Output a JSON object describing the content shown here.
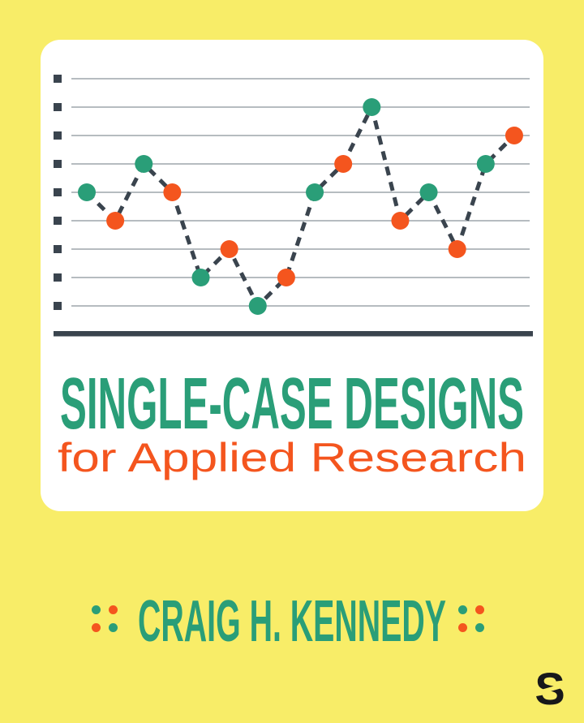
{
  "cover": {
    "title": "SINGLE-CASE DESIGNS",
    "subtitle": "for Applied Research",
    "author": "CRAIG H. KENNEDY",
    "publisher_logo_letter": "S"
  },
  "colors": {
    "background": "#F8ED68",
    "card": "#FFFFFF",
    "teal": "#2A9E78",
    "orange": "#F4551E",
    "slate": "#3A444E",
    "gridline": "#9DA6AB",
    "logo": "#17181A"
  },
  "author_decoration": {
    "pattern": [
      "teal",
      "orange",
      "orange",
      "teal"
    ]
  },
  "chart_data": {
    "type": "line",
    "line_style": "dashed",
    "marker": "circle",
    "title": "",
    "xlabel": "",
    "ylabel": "",
    "legend": "none",
    "axis": "thick bottom axis only, no labels",
    "gridlines": "horizontal, with square tick markers at left ends",
    "gridline_values": [
      9,
      8,
      7,
      6,
      5,
      4,
      3,
      2,
      1
    ],
    "ylim": [
      0,
      10
    ],
    "x": [
      1,
      2,
      3,
      4,
      5,
      6,
      7,
      8,
      9,
      10,
      11,
      12,
      13,
      14,
      15,
      16
    ],
    "values": [
      5,
      4,
      6,
      5,
      2,
      3,
      1,
      2,
      5,
      6,
      8,
      4,
      5,
      3,
      6,
      7
    ],
    "marker_colors": [
      "teal",
      "orange",
      "teal",
      "orange",
      "teal",
      "orange",
      "teal",
      "orange",
      "teal",
      "orange",
      "teal",
      "orange",
      "teal",
      "orange",
      "teal",
      "orange"
    ]
  }
}
